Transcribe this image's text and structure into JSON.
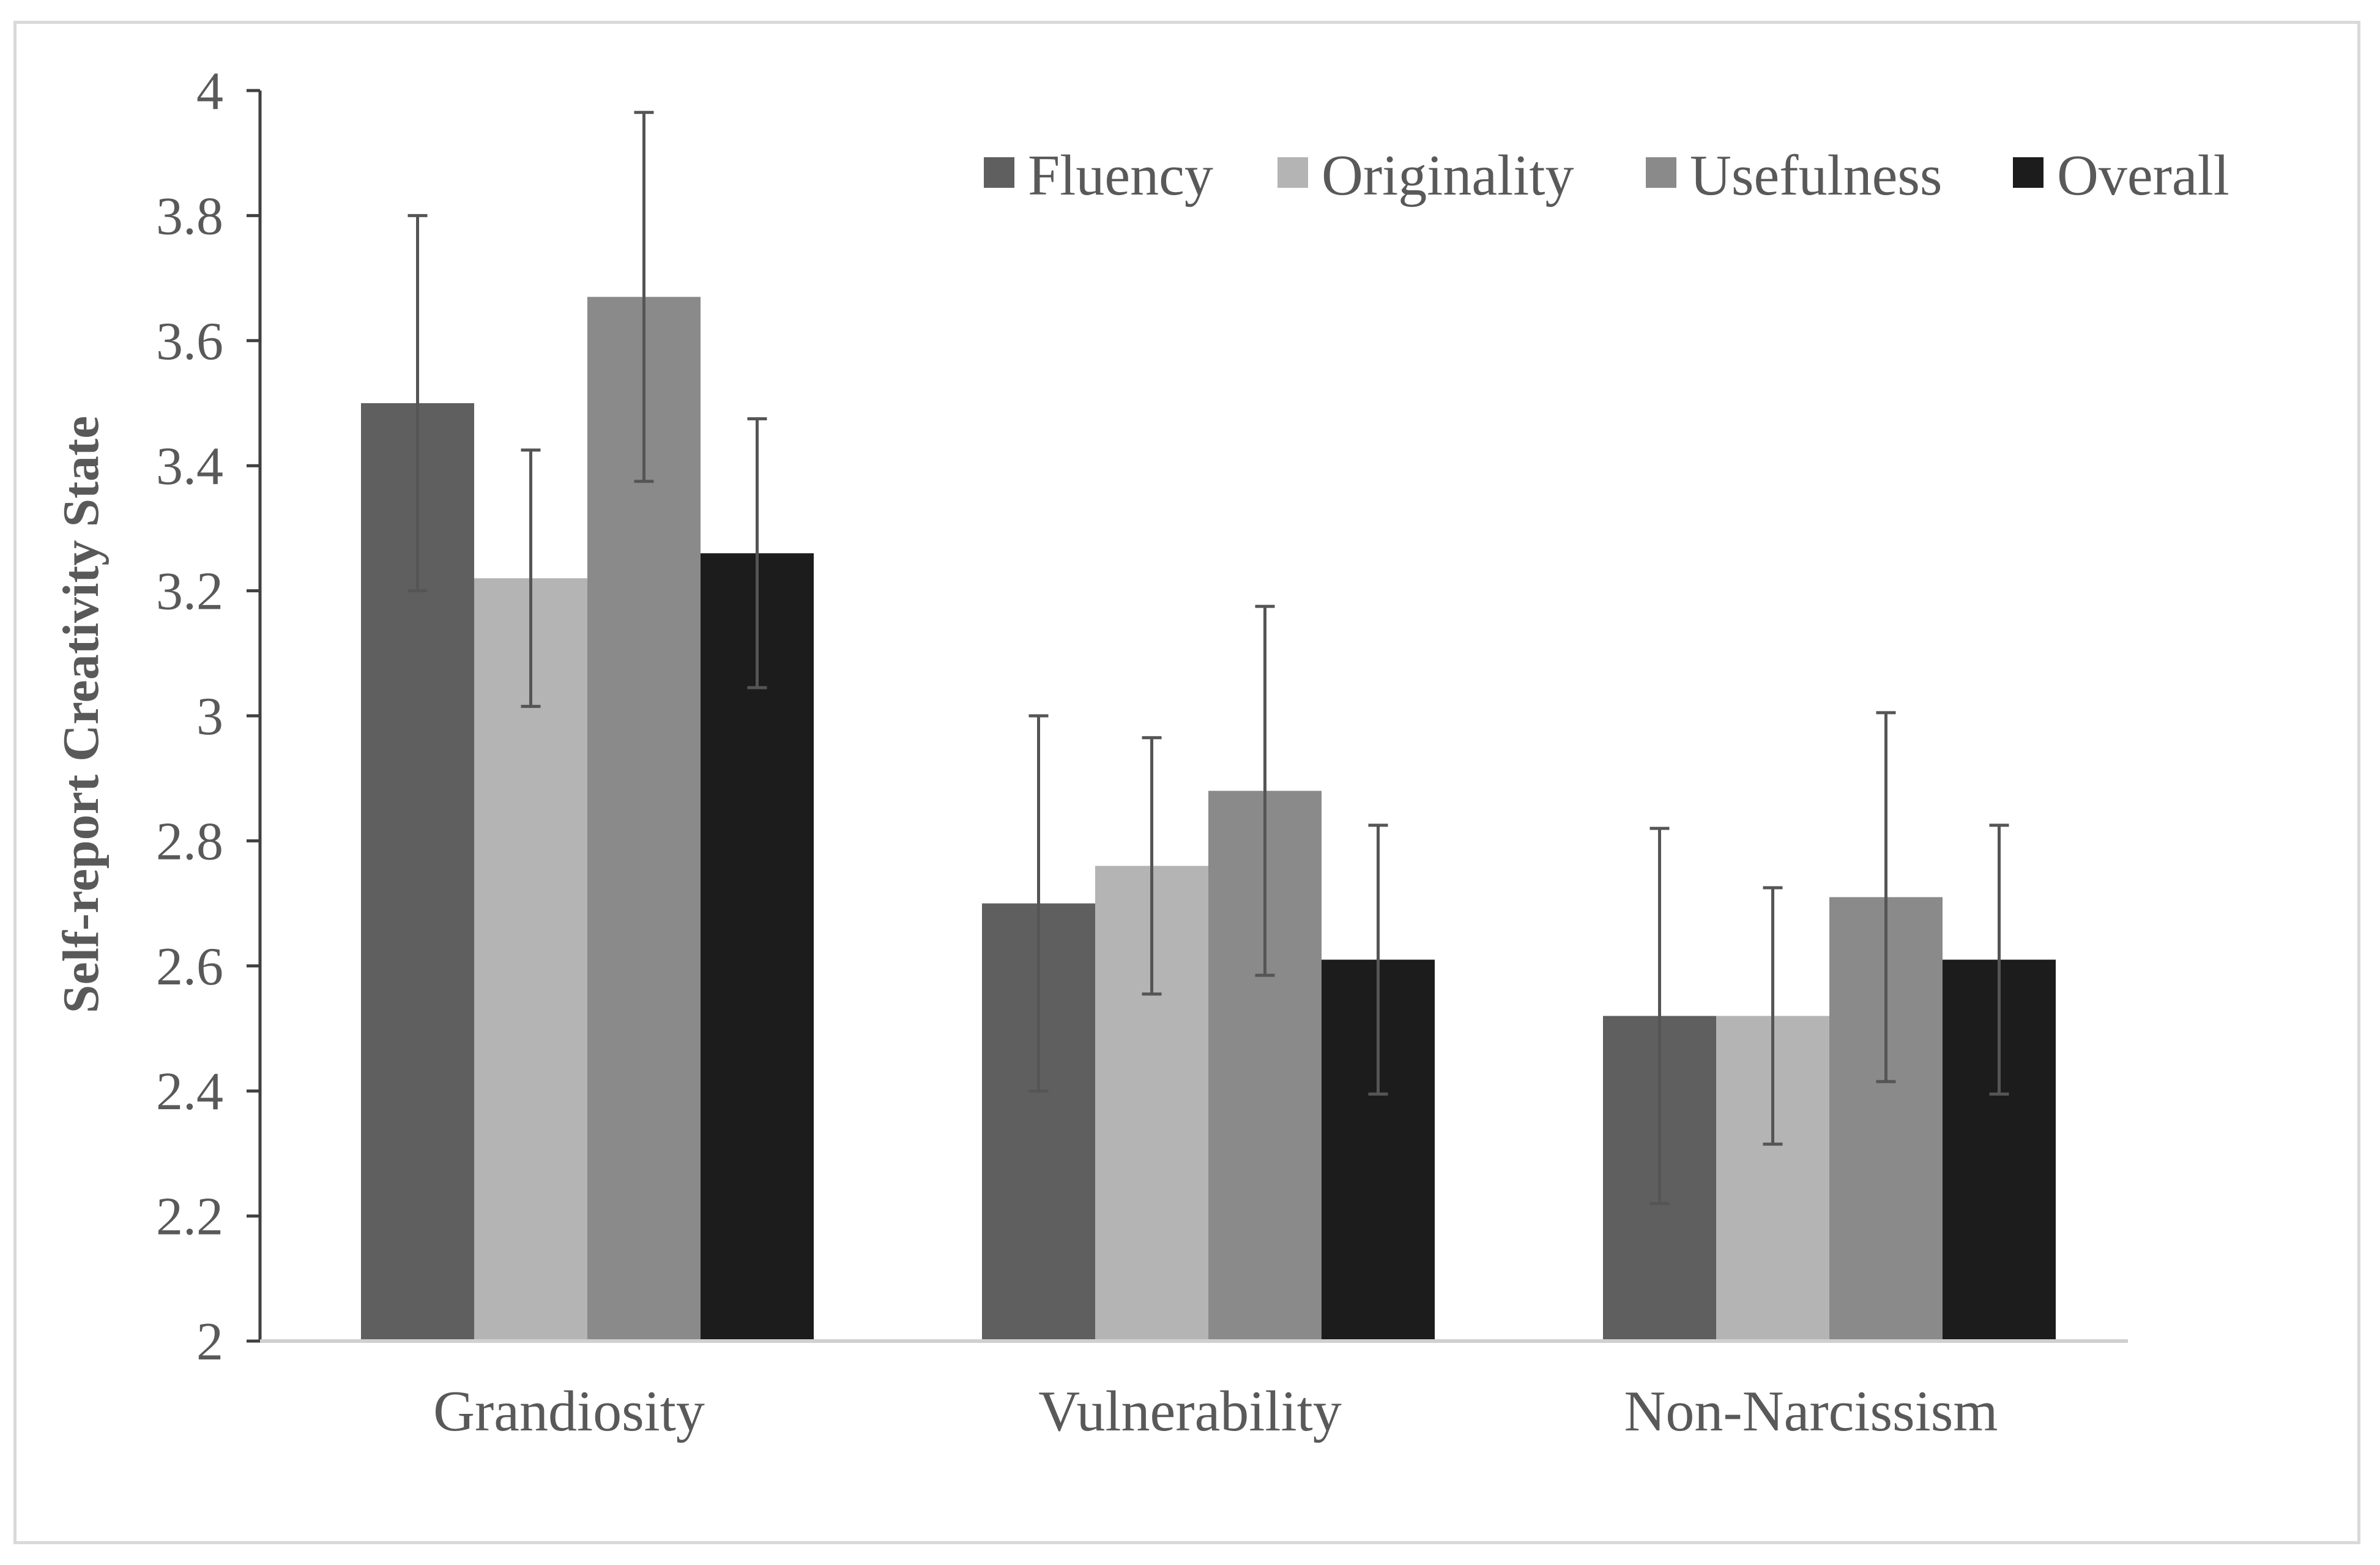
{
  "chart_data": {
    "type": "bar",
    "title": "",
    "xlabel": "",
    "ylabel": "Self-report Creativity State",
    "ylim": [
      2,
      4
    ],
    "yticks": [
      "2",
      "2.2",
      "2.4",
      "2.6",
      "2.8",
      "3",
      "3.2",
      "3.4",
      "3.6",
      "3.8",
      "4"
    ],
    "ytick_values": [
      2,
      2.2,
      2.4,
      2.6,
      2.8,
      3,
      3.2,
      3.4,
      3.6,
      3.8,
      4
    ],
    "categories": [
      "Grandiosity",
      "Vulnerability",
      "Non-Narcissism"
    ],
    "legend_position": "top-right",
    "grid": false,
    "series": [
      {
        "name": "Fluency",
        "color": "#5f5f5f",
        "values": [
          3.5,
          2.7,
          2.52
        ],
        "error_low": [
          3.2,
          2.4,
          2.22
        ],
        "error_high": [
          3.8,
          3.0,
          2.82
        ]
      },
      {
        "name": "Originality",
        "color": "#b4b4b4",
        "values": [
          3.22,
          2.76,
          2.52
        ],
        "error_low": [
          3.015,
          2.555,
          2.315
        ],
        "error_high": [
          3.425,
          2.965,
          2.725
        ]
      },
      {
        "name": "Usefulness",
        "color": "#8a8a8a",
        "values": [
          3.67,
          2.88,
          2.71
        ],
        "error_low": [
          3.375,
          2.585,
          2.415
        ],
        "error_high": [
          3.965,
          3.175,
          3.005
        ]
      },
      {
        "name": "Overall",
        "color": "#1c1c1c",
        "values": [
          3.26,
          2.61,
          2.61
        ],
        "error_low": [
          3.045,
          2.395,
          2.395
        ],
        "error_high": [
          3.475,
          2.825,
          2.825
        ]
      }
    ],
    "axis_color": "#404040",
    "error_bar_color": "#555555"
  }
}
